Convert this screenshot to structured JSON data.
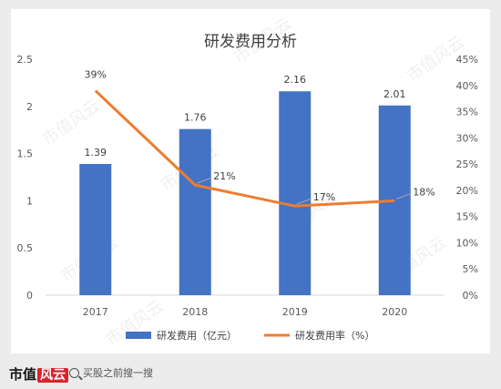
{
  "chart_data": {
    "type": "bar+line",
    "title": "研发费用分析",
    "categories": [
      "2017",
      "2018",
      "2019",
      "2020"
    ],
    "series": [
      {
        "name": "研发费用（亿元）",
        "type": "bar",
        "axis": "left",
        "values": [
          1.39,
          1.76,
          2.16,
          2.01
        ],
        "labels": [
          "1.39",
          "1.76",
          "2.16",
          "2.01"
        ],
        "color": "#4472c4"
      },
      {
        "name": "研发费用率（%）",
        "type": "line",
        "axis": "right",
        "values": [
          39,
          21,
          17,
          18
        ],
        "labels": [
          "39%",
          "21%",
          "17%",
          "18%"
        ],
        "color": "#ed7d31"
      }
    ],
    "y_left": {
      "min": 0,
      "max": 2.5,
      "ticks": [
        "0",
        "0.5",
        "1",
        "1.5",
        "2",
        "2.5"
      ]
    },
    "y_right": {
      "min": 0,
      "max": 45,
      "ticks": [
        "0%",
        "5%",
        "10%",
        "15%",
        "20%",
        "25%",
        "30%",
        "35%",
        "40%",
        "45%"
      ]
    },
    "grid": false,
    "legend_position": "bottom"
  },
  "watermark": "市值风云",
  "footer": {
    "logo_text": "市值",
    "logo_accent": "风云",
    "search_text": "买股之前搜一搜"
  }
}
